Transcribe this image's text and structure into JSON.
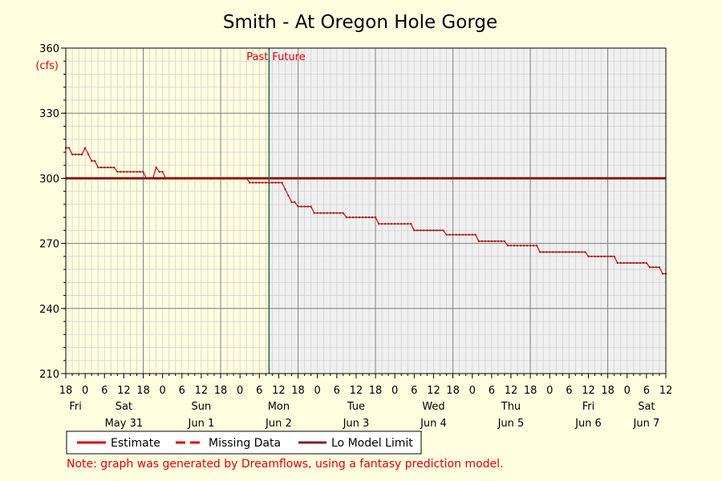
{
  "chart_data": {
    "type": "line",
    "title": "Smith - At Oregon Hole Gorge",
    "ylabel": "(cfs)",
    "ylim": [
      210,
      360
    ],
    "yticks": [
      210,
      240,
      270,
      300,
      330,
      360
    ],
    "xlim_hours": [
      -6,
      180
    ],
    "now_hour": 57,
    "past_label": "Past",
    "future_label": "Future",
    "hour_tick_labels": [
      "18",
      "0",
      "6",
      "12",
      "18",
      "0",
      "6",
      "12",
      "18",
      "0",
      "6",
      "12",
      "18",
      "0",
      "6",
      "12",
      "18",
      "0",
      "6",
      "12",
      "18",
      "0",
      "6",
      "12",
      "18",
      "0",
      "6",
      "12",
      "18",
      "0",
      "6",
      "12"
    ],
    "day_labels": [
      {
        "hour": -3,
        "label": "Fri"
      },
      {
        "hour": 12,
        "label": "Sat"
      },
      {
        "hour": 36,
        "label": "Sun"
      },
      {
        "hour": 60,
        "label": "Mon"
      },
      {
        "hour": 84,
        "label": "Tue"
      },
      {
        "hour": 108,
        "label": "Wed"
      },
      {
        "hour": 132,
        "label": "Thu"
      },
      {
        "hour": 156,
        "label": "Fri"
      },
      {
        "hour": 174,
        "label": "Sat"
      }
    ],
    "date_labels": [
      {
        "hour": 12,
        "label": "May 31"
      },
      {
        "hour": 36,
        "label": "Jun 1"
      },
      {
        "hour": 60,
        "label": "Jun 2"
      },
      {
        "hour": 84,
        "label": "Jun 3"
      },
      {
        "hour": 108,
        "label": "Jun 4"
      },
      {
        "hour": 132,
        "label": "Jun 5"
      },
      {
        "hour": 156,
        "label": "Jun 6"
      },
      {
        "hour": 174,
        "label": "Jun 7"
      }
    ],
    "lo_model_limit": 300,
    "series": [
      {
        "name": "Estimate",
        "color": "#e00000",
        "points": [
          [
            -6,
            314
          ],
          [
            -5,
            314
          ],
          [
            -4,
            311
          ],
          [
            -3,
            311
          ],
          [
            -2,
            311
          ],
          [
            -1,
            311
          ],
          [
            0,
            314
          ],
          [
            1,
            311
          ],
          [
            2,
            308
          ],
          [
            3,
            308
          ],
          [
            4,
            305
          ],
          [
            5,
            305
          ],
          [
            6,
            305
          ],
          [
            7,
            305
          ],
          [
            8,
            305
          ],
          [
            9,
            305
          ],
          [
            10,
            303
          ],
          [
            11,
            303
          ],
          [
            12,
            303
          ],
          [
            13,
            303
          ],
          [
            14,
            303
          ],
          [
            15,
            303
          ],
          [
            16,
            303
          ],
          [
            17,
            303
          ],
          [
            18,
            303
          ],
          [
            19,
            300
          ],
          [
            20,
            300
          ],
          [
            21,
            300
          ],
          [
            22,
            305
          ],
          [
            23,
            303
          ],
          [
            24,
            303
          ],
          [
            25,
            300
          ],
          [
            26,
            300
          ],
          [
            27,
            300
          ],
          [
            28,
            300
          ],
          [
            29,
            300
          ],
          [
            30,
            300
          ],
          [
            31,
            300
          ],
          [
            32,
            300
          ],
          [
            33,
            300
          ],
          [
            34,
            300
          ],
          [
            35,
            300
          ],
          [
            36,
            300
          ],
          [
            37,
            300
          ],
          [
            38,
            300
          ],
          [
            39,
            300
          ],
          [
            40,
            300
          ],
          [
            41,
            300
          ],
          [
            42,
            300
          ],
          [
            43,
            300
          ],
          [
            44,
            300
          ],
          [
            45,
            300
          ],
          [
            46,
            300
          ],
          [
            47,
            300
          ],
          [
            48,
            300
          ],
          [
            49,
            300
          ],
          [
            50,
            300
          ],
          [
            51,
            298
          ],
          [
            52,
            298
          ],
          [
            53,
            298
          ],
          [
            54,
            298
          ],
          [
            55,
            298
          ],
          [
            56,
            298
          ],
          [
            57,
            298
          ],
          [
            58,
            298
          ],
          [
            59,
            298
          ],
          [
            60,
            298
          ],
          [
            61,
            298
          ],
          [
            62,
            295
          ],
          [
            63,
            292
          ],
          [
            64,
            289
          ],
          [
            65,
            289
          ],
          [
            66,
            287
          ],
          [
            67,
            287
          ],
          [
            68,
            287
          ],
          [
            69,
            287
          ],
          [
            70,
            287
          ],
          [
            71,
            284
          ],
          [
            72,
            284
          ],
          [
            73,
            284
          ],
          [
            74,
            284
          ],
          [
            75,
            284
          ],
          [
            76,
            284
          ],
          [
            77,
            284
          ],
          [
            78,
            284
          ],
          [
            79,
            284
          ],
          [
            80,
            284
          ],
          [
            81,
            282
          ],
          [
            82,
            282
          ],
          [
            83,
            282
          ],
          [
            84,
            282
          ],
          [
            85,
            282
          ],
          [
            86,
            282
          ],
          [
            87,
            282
          ],
          [
            88,
            282
          ],
          [
            89,
            282
          ],
          [
            90,
            282
          ],
          [
            91,
            279
          ],
          [
            92,
            279
          ],
          [
            93,
            279
          ],
          [
            94,
            279
          ],
          [
            95,
            279
          ],
          [
            96,
            279
          ],
          [
            97,
            279
          ],
          [
            98,
            279
          ],
          [
            99,
            279
          ],
          [
            100,
            279
          ],
          [
            101,
            279
          ],
          [
            102,
            276
          ],
          [
            103,
            276
          ],
          [
            104,
            276
          ],
          [
            105,
            276
          ],
          [
            106,
            276
          ],
          [
            107,
            276
          ],
          [
            108,
            276
          ],
          [
            109,
            276
          ],
          [
            110,
            276
          ],
          [
            111,
            276
          ],
          [
            112,
            274
          ],
          [
            113,
            274
          ],
          [
            114,
            274
          ],
          [
            115,
            274
          ],
          [
            116,
            274
          ],
          [
            117,
            274
          ],
          [
            118,
            274
          ],
          [
            119,
            274
          ],
          [
            120,
            274
          ],
          [
            121,
            274
          ],
          [
            122,
            271
          ],
          [
            123,
            271
          ],
          [
            124,
            271
          ],
          [
            125,
            271
          ],
          [
            126,
            271
          ],
          [
            127,
            271
          ],
          [
            128,
            271
          ],
          [
            129,
            271
          ],
          [
            130,
            271
          ],
          [
            131,
            269
          ],
          [
            132,
            269
          ],
          [
            133,
            269
          ],
          [
            134,
            269
          ],
          [
            135,
            269
          ],
          [
            136,
            269
          ],
          [
            137,
            269
          ],
          [
            138,
            269
          ],
          [
            139,
            269
          ],
          [
            140,
            269
          ],
          [
            141,
            266
          ],
          [
            142,
            266
          ],
          [
            143,
            266
          ],
          [
            144,
            266
          ],
          [
            145,
            266
          ],
          [
            146,
            266
          ],
          [
            147,
            266
          ],
          [
            148,
            266
          ],
          [
            149,
            266
          ],
          [
            150,
            266
          ],
          [
            151,
            266
          ],
          [
            152,
            266
          ],
          [
            153,
            266
          ],
          [
            154,
            266
          ],
          [
            155,
            266
          ],
          [
            156,
            264
          ],
          [
            157,
            264
          ],
          [
            158,
            264
          ],
          [
            159,
            264
          ],
          [
            160,
            264
          ],
          [
            161,
            264
          ],
          [
            162,
            264
          ],
          [
            163,
            264
          ],
          [
            164,
            264
          ],
          [
            165,
            261
          ],
          [
            166,
            261
          ],
          [
            167,
            261
          ],
          [
            168,
            261
          ],
          [
            169,
            261
          ],
          [
            170,
            261
          ],
          [
            171,
            261
          ],
          [
            172,
            261
          ],
          [
            173,
            261
          ],
          [
            174,
            261
          ],
          [
            175,
            259
          ],
          [
            176,
            259
          ],
          [
            177,
            259
          ],
          [
            178,
            259
          ],
          [
            179,
            256
          ],
          [
            180,
            256
          ]
        ]
      }
    ],
    "legend": [
      {
        "label": "Estimate",
        "style": "solid",
        "color": "#e00000"
      },
      {
        "label": "Missing Data",
        "style": "dashed",
        "color": "#e00000"
      },
      {
        "label": "Lo Model Limit",
        "style": "solid",
        "color": "#8b1a1a"
      }
    ],
    "note": "Note: graph was generated by Dreamflows, using a fantasy prediction model."
  }
}
